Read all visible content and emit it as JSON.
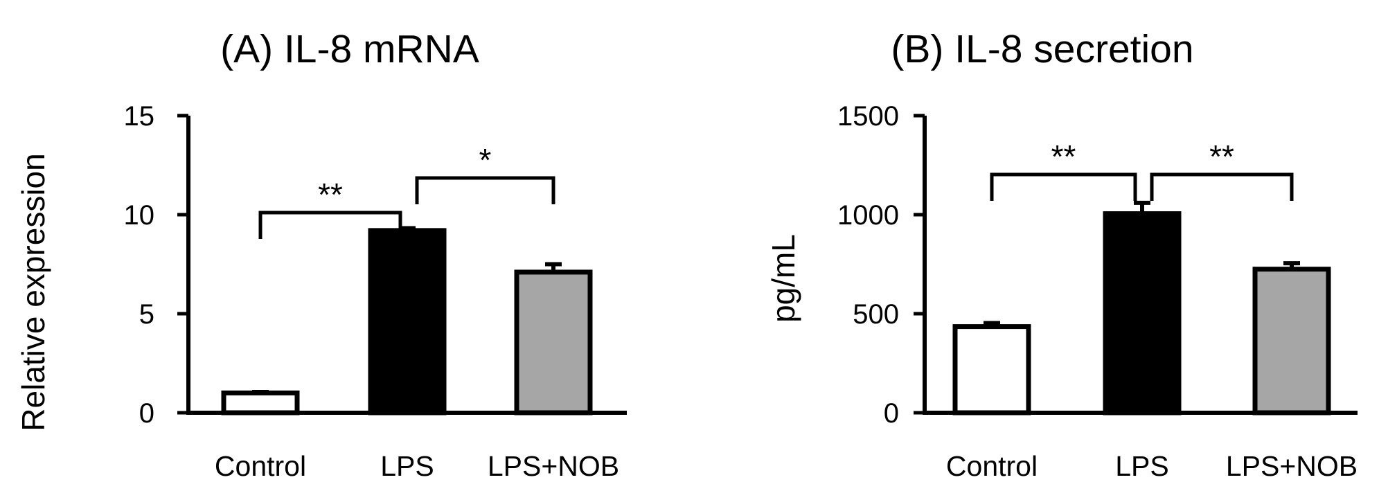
{
  "chart_data": [
    {
      "type": "bar",
      "title": "(A) IL-8 mRNA",
      "ylabel": "Relative expression",
      "xlabel": "",
      "ylim": [
        0,
        15
      ],
      "yticks": [
        "0",
        "5",
        "10",
        "15"
      ],
      "categories": [
        "Control",
        "LPS",
        "LPS+NOB"
      ],
      "values": [
        1.0,
        9.2,
        7.1
      ],
      "errors": [
        0.05,
        0.12,
        0.4
      ],
      "bar_colors": [
        "#ffffff",
        "#000000",
        "#a6a6a6"
      ],
      "significance": [
        {
          "from": 0,
          "to": 1,
          "label": "**"
        },
        {
          "from": 1,
          "to": 2,
          "label": "*"
        }
      ]
    },
    {
      "type": "bar",
      "title": "(B) IL-8 secretion",
      "ylabel": "pg/mL",
      "xlabel": "",
      "ylim": [
        0,
        1500
      ],
      "yticks": [
        "0",
        "500",
        "1000",
        "1500"
      ],
      "categories": [
        "Control",
        "LPS",
        "LPS+NOB"
      ],
      "values": [
        435,
        1005,
        725
      ],
      "errors": [
        18,
        55,
        30
      ],
      "bar_colors": [
        "#ffffff",
        "#000000",
        "#a6a6a6"
      ],
      "significance": [
        {
          "from": 0,
          "to": 1,
          "label": "**"
        },
        {
          "from": 1,
          "to": 2,
          "label": "**"
        }
      ]
    }
  ]
}
